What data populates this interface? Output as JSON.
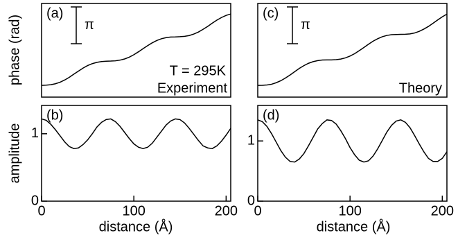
{
  "chart_data": [
    {
      "type": "line",
      "panel_label": "(a)",
      "ylabel": "phase (rad)",
      "annotations": [
        "T = 295K",
        "Experiment"
      ],
      "scale_bar": {
        "value": 3.1416,
        "label": "π"
      },
      "color": "#000000",
      "xlim": [
        0,
        205
      ],
      "ylim": [
        0,
        8
      ],
      "x": [
        0,
        5,
        10,
        15,
        20,
        25,
        30,
        35,
        40,
        45,
        50,
        55,
        60,
        65,
        70,
        75,
        80,
        85,
        90,
        95,
        100,
        105,
        110,
        115,
        120,
        125,
        130,
        135,
        140,
        145,
        150,
        155,
        160,
        165,
        170,
        175,
        180,
        185,
        190,
        195,
        200,
        205
      ],
      "values": [
        1.0,
        1.02,
        1.06,
        1.14,
        1.27,
        1.46,
        1.69,
        1.96,
        2.22,
        2.48,
        2.7,
        2.86,
        2.97,
        3.04,
        3.07,
        3.08,
        3.1,
        3.16,
        3.26,
        3.41,
        3.62,
        3.87,
        4.14,
        4.4,
        4.64,
        4.84,
        4.99,
        5.08,
        5.13,
        5.14,
        5.16,
        5.19,
        5.26,
        5.39,
        5.56,
        5.79,
        6.04,
        6.32,
        6.58,
        6.8,
        6.98,
        7.1
      ]
    },
    {
      "type": "line",
      "panel_label": "(b)",
      "ylabel": "amplitude",
      "xlabel": "distance (Å)",
      "color": "#000000",
      "xlim": [
        0,
        205
      ],
      "ylim": [
        0,
        1.42
      ],
      "xticks": [
        0,
        100,
        200
      ],
      "yticks": [
        0,
        1
      ],
      "x": [
        0,
        5,
        10,
        15,
        20,
        25,
        30,
        35,
        40,
        45,
        50,
        55,
        60,
        65,
        70,
        75,
        80,
        85,
        90,
        95,
        100,
        105,
        110,
        115,
        120,
        125,
        130,
        135,
        140,
        145,
        150,
        155,
        160,
        165,
        170,
        175,
        180,
        185,
        190,
        195,
        200,
        205
      ],
      "values": [
        1.22,
        1.2,
        1.14,
        1.06,
        0.97,
        0.88,
        0.81,
        0.78,
        0.79,
        0.84,
        0.91,
        1.0,
        1.1,
        1.17,
        1.21,
        1.22,
        1.18,
        1.11,
        1.02,
        0.93,
        0.85,
        0.8,
        0.78,
        0.8,
        0.86,
        0.95,
        1.04,
        1.13,
        1.19,
        1.22,
        1.21,
        1.16,
        1.08,
        0.99,
        0.9,
        0.82,
        0.79,
        0.78,
        0.82,
        0.89,
        0.98,
        1.08
      ]
    },
    {
      "type": "line",
      "panel_label": "(c)",
      "annotations": [
        "Theory"
      ],
      "scale_bar": {
        "value": 3.1416,
        "label": "π"
      },
      "color": "#000000",
      "xlim": [
        0,
        205
      ],
      "ylim": [
        0,
        8
      ],
      "x": [
        0,
        5,
        10,
        15,
        20,
        25,
        30,
        35,
        40,
        45,
        50,
        55,
        60,
        65,
        70,
        75,
        80,
        85,
        90,
        95,
        100,
        105,
        110,
        115,
        120,
        125,
        130,
        135,
        140,
        145,
        150,
        155,
        160,
        165,
        170,
        175,
        180,
        185,
        190,
        195,
        200,
        205
      ],
      "values": [
        1.0,
        1.01,
        1.04,
        1.1,
        1.23,
        1.4,
        1.63,
        1.89,
        2.17,
        2.45,
        2.69,
        2.89,
        3.03,
        3.12,
        3.17,
        3.18,
        3.18,
        3.2,
        3.25,
        3.35,
        3.51,
        3.71,
        3.97,
        4.24,
        4.52,
        4.78,
        4.99,
        5.16,
        5.27,
        5.33,
        5.35,
        5.36,
        5.37,
        5.4,
        5.48,
        5.62,
        5.81,
        6.04,
        6.31,
        6.59,
        6.86,
        7.09
      ]
    },
    {
      "type": "line",
      "panel_label": "(d)",
      "xlabel": "distance (Å)",
      "color": "#000000",
      "xlim": [
        0,
        205
      ],
      "ylim": [
        0,
        1.59
      ],
      "xticks": [
        0,
        100,
        200
      ],
      "yticks": [
        0,
        1
      ],
      "x": [
        0,
        5,
        10,
        15,
        20,
        25,
        30,
        35,
        40,
        45,
        50,
        55,
        60,
        65,
        70,
        75,
        80,
        85,
        90,
        95,
        100,
        105,
        110,
        115,
        120,
        125,
        130,
        135,
        140,
        145,
        150,
        155,
        160,
        165,
        170,
        175,
        180,
        185,
        190,
        195,
        200,
        205
      ],
      "values": [
        1.35,
        1.32,
        1.24,
        1.12,
        0.98,
        0.84,
        0.73,
        0.66,
        0.65,
        0.7,
        0.79,
        0.92,
        1.06,
        1.2,
        1.29,
        1.35,
        1.34,
        1.28,
        1.17,
        1.04,
        0.89,
        0.77,
        0.68,
        0.65,
        0.67,
        0.75,
        0.87,
        1.01,
        1.15,
        1.26,
        1.33,
        1.35,
        1.31,
        1.22,
        1.09,
        0.95,
        0.82,
        0.71,
        0.66,
        0.66,
        0.71,
        0.82
      ]
    }
  ]
}
